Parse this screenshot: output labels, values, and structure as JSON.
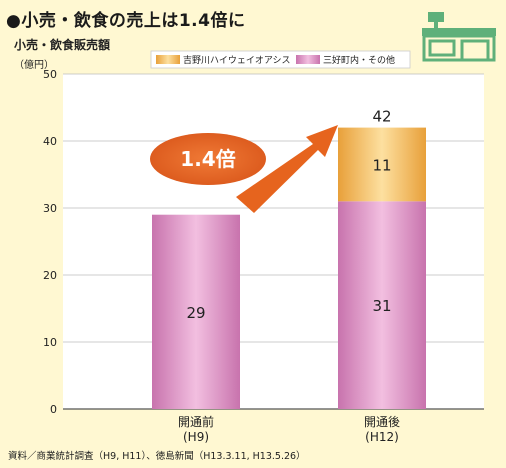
{
  "title": "●小売・飲食の売上は1.4倍に",
  "source": "資料／商業統計調査（H9, H11）、徳島新聞（H13.3.11, H13.5.26）",
  "annotation": "1.4倍",
  "colors": {
    "background": "#fff8d2",
    "bar_bottom": "#d98fc0",
    "bar_top": "#f0b450",
    "arrow": "#e6641e",
    "icon": "#5fb07a"
  },
  "chart_data": {
    "type": "bar",
    "stacked": true,
    "ylabel": "小売・飲食販売額",
    "yunit": "（億円）",
    "ylim": [
      0,
      50
    ],
    "yticks": [
      0,
      10,
      20,
      30,
      40,
      50
    ],
    "grid": true,
    "legend_position": "top-right",
    "categories": [
      {
        "line1": "開通前",
        "line2": "(H9)"
      },
      {
        "line1": "開通後",
        "line2": "(H12)"
      }
    ],
    "series": [
      {
        "name": "三好町内・その他",
        "color": "#d98fc0",
        "values": [
          29,
          31
        ],
        "labels": [
          "29",
          "31"
        ]
      },
      {
        "name": "吉野川ハイウェイオアシス",
        "color": "#f0b450",
        "values": [
          0,
          11
        ],
        "labels": [
          "",
          "11"
        ]
      }
    ],
    "totals": [
      29,
      42
    ],
    "total_labels": [
      "",
      "42"
    ]
  }
}
